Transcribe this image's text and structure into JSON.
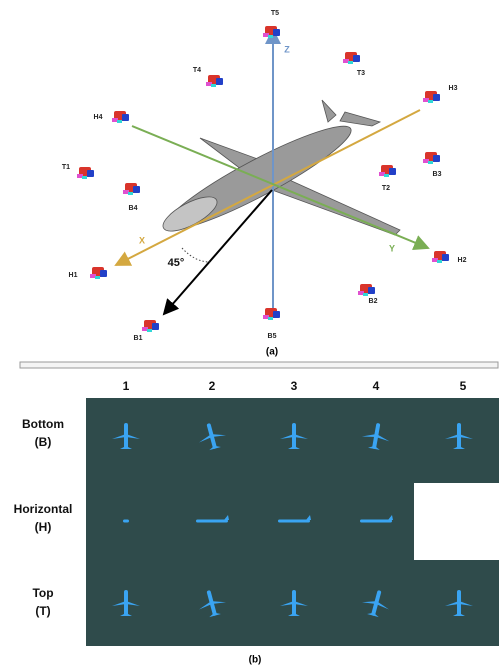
{
  "axes": {
    "x": "X",
    "y": "Y",
    "z": "Z",
    "angle": "45°"
  },
  "cameras": {
    "T1": "T1",
    "T2": "T2",
    "T3": "T3",
    "T4": "T4",
    "T5": "T5",
    "H1": "H1",
    "H2": "H2",
    "H3": "H3",
    "H4": "H4",
    "B1": "B1",
    "B2": "B2",
    "B3": "B3",
    "B4": "B4",
    "B5": "B5"
  },
  "panel_a": {
    "caption": "(a)"
  },
  "panel_b": {
    "caption": "(b)",
    "columns": [
      "1",
      "2",
      "3",
      "4",
      "5"
    ],
    "rows": [
      {
        "name": "Bottom",
        "code": "(B)"
      },
      {
        "name": "Horizontal",
        "code": "(H)"
      },
      {
        "name": "Top",
        "code": "(T)"
      }
    ]
  }
}
